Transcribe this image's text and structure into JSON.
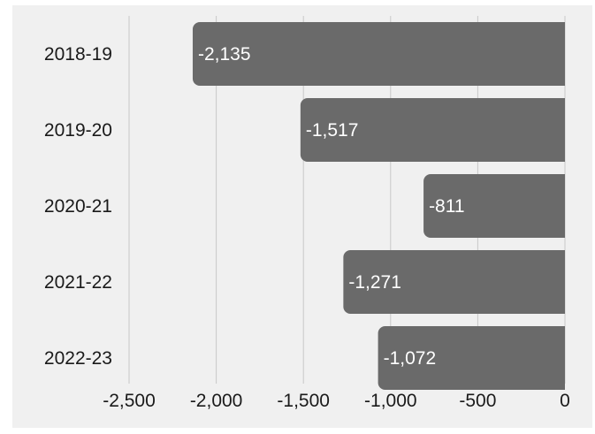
{
  "chart_data": {
    "type": "bar",
    "orientation": "horizontal",
    "categories": [
      "2018-19",
      "2019-20",
      "2020-21",
      "2021-22",
      "2022-23"
    ],
    "values": [
      -2135,
      -1517,
      -811,
      -1271,
      -1072
    ],
    "data_labels": [
      "-2,135",
      "-1,517",
      "-811",
      "-1,271",
      "-1,072"
    ],
    "x_ticks": [
      -2500,
      -2000,
      -1500,
      -1000,
      -500,
      0
    ],
    "x_tick_labels": [
      "-2,500",
      "-2,000",
      "-1,500",
      "-1,000",
      "-500",
      "0"
    ],
    "xlim": [
      -2500,
      0
    ],
    "title": "",
    "xlabel": "",
    "ylabel": "",
    "grid": "vertical",
    "legend": "none",
    "colors": {
      "bar": "#6a6a6a",
      "bar_label": "#ffffff",
      "grid": "#c8c8c8",
      "text": "#1a1a1a",
      "background": "#f0f0f0"
    }
  }
}
